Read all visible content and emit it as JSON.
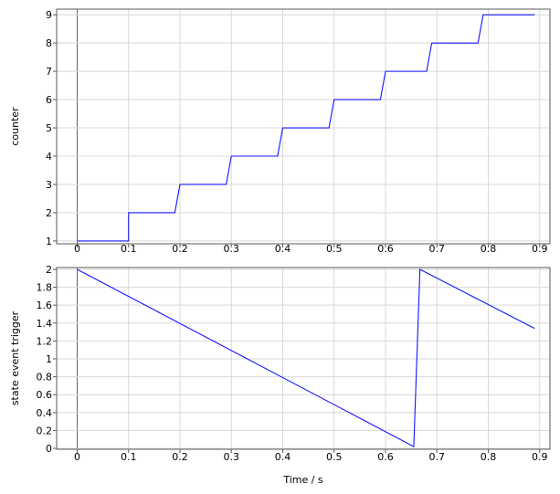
{
  "chart_data": [
    {
      "type": "line",
      "ylabel": "counter",
      "xlabel": "",
      "xlim": [
        -0.04,
        0.92
      ],
      "ylim": [
        0.9,
        9.2
      ],
      "xticks": [
        "0",
        "0.1",
        "0.2",
        "0.3",
        "0.4",
        "0.5",
        "0.6",
        "0.7",
        "0.8",
        "0.9"
      ],
      "yticks": [
        "1",
        "2",
        "3",
        "4",
        "5",
        "6",
        "7",
        "8",
        "9"
      ],
      "grid": true,
      "series": [
        {
          "color": "#1414ff",
          "x": [
            0,
            0.1,
            0.1,
            0.19,
            0.2,
            0.29,
            0.3,
            0.39,
            0.4,
            0.49,
            0.5,
            0.59,
            0.6,
            0.68,
            0.69,
            0.78,
            0.79,
            0.89
          ],
          "y": [
            1,
            1,
            2,
            2,
            3,
            3,
            4,
            4,
            5,
            5,
            6,
            6,
            7,
            7,
            8,
            8,
            9,
            9
          ]
        }
      ]
    },
    {
      "type": "line",
      "ylabel": "state event trigger",
      "xlabel": "Time / s",
      "xlim": [
        -0.04,
        0.92
      ],
      "ylim": [
        -0.01,
        2.02
      ],
      "xticks": [
        "0",
        "0.1",
        "0.2",
        "0.3",
        "0.4",
        "0.5",
        "0.6",
        "0.7",
        "0.8",
        "0.9"
      ],
      "yticks": [
        "0",
        "0.2",
        "0.4",
        "0.6",
        "0.8",
        "1",
        "1.2",
        "1.4",
        "1.6",
        "1.8",
        "2"
      ],
      "grid": true,
      "series": [
        {
          "color": "#1414ff",
          "x": [
            0,
            0.655,
            0.667,
            0.89
          ],
          "y": [
            2,
            0.02,
            2,
            1.34
          ]
        }
      ]
    }
  ]
}
